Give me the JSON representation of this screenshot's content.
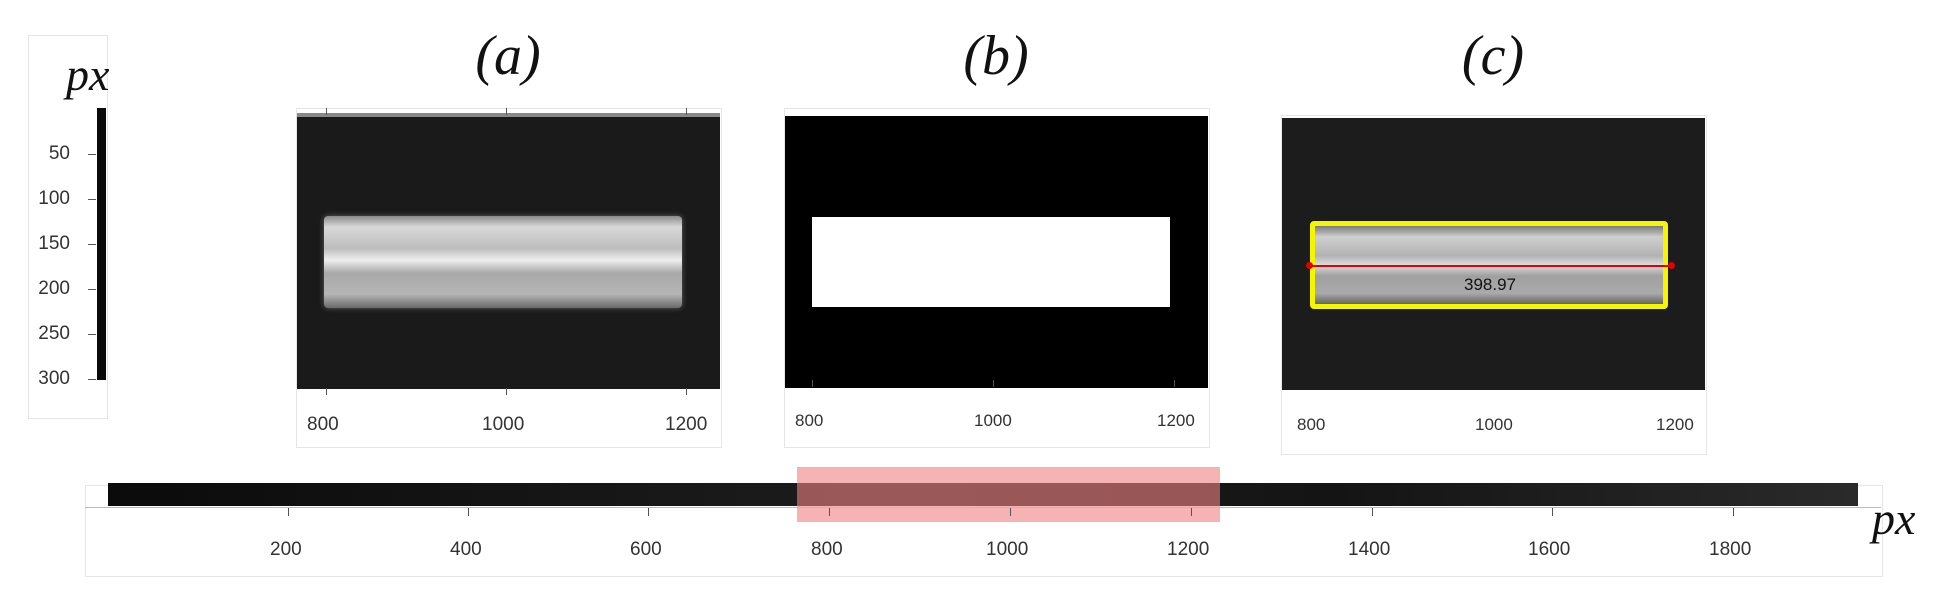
{
  "y_unit": "px",
  "x_unit": "px",
  "y_ticks": [
    "50",
    "100",
    "150",
    "200",
    "250",
    "300"
  ],
  "panels": [
    {
      "title": "(a)",
      "ticks": [
        "800",
        "1000",
        "1200"
      ]
    },
    {
      "title": "(b)",
      "ticks": [
        "800",
        "1000",
        "1200"
      ]
    },
    {
      "title": "(c)",
      "ticks": [
        "800",
        "1000",
        "1200"
      ],
      "measurement": "398.97"
    }
  ],
  "strip_ticks": [
    "200",
    "400",
    "600",
    "800",
    "1000",
    "1200",
    "1400",
    "1600",
    "1800"
  ],
  "highlight_range": [
    760,
    1235
  ],
  "colors": {
    "highlight": "#f08080",
    "outline": "#f5f500",
    "measure_line": "#e00000"
  }
}
